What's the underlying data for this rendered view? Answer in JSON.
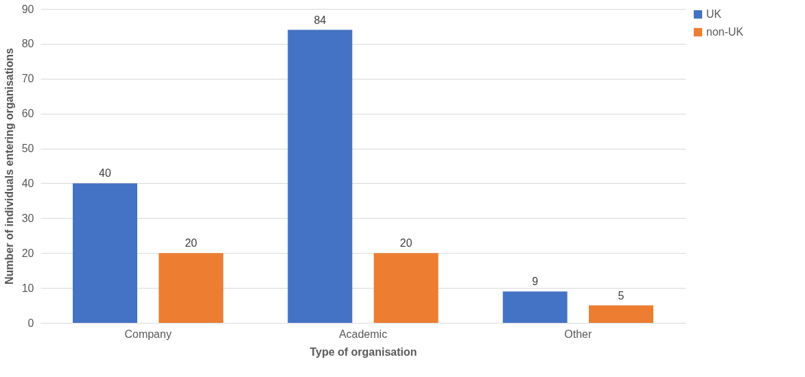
{
  "chart_data": {
    "type": "bar",
    "xlabel": "Type of organisation",
    "ylabel": "Number of individuals entering organisations",
    "categories": [
      "Company",
      "Academic",
      "Other"
    ],
    "series": [
      {
        "name": "UK",
        "color": "#4472c4",
        "values": [
          40,
          84,
          9
        ]
      },
      {
        "name": "non-UK",
        "color": "#ed7d31",
        "values": [
          20,
          20,
          5
        ]
      }
    ],
    "ylim": [
      0,
      90
    ],
    "yticks": [
      0,
      10,
      20,
      30,
      40,
      50,
      60,
      70,
      80,
      90
    ],
    "grid": "y",
    "legend": "right",
    "data_labels": true
  }
}
